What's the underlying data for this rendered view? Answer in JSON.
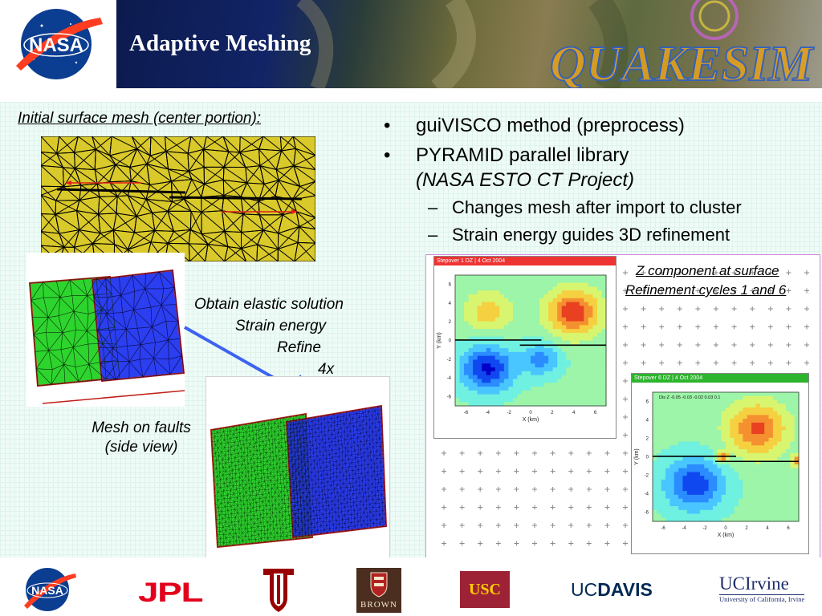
{
  "slide": {
    "title": "Adaptive Meshing",
    "banner_logo_text": "QUAKESIM"
  },
  "labels": {
    "initial_mesh": "Initial surface mesh (center portion):",
    "process_steps": [
      "Obtain elastic solution",
      "Strain energy",
      "Refine",
      "4x"
    ],
    "mesh_on_faults": [
      "Mesh on faults ",
      "(side view)"
    ],
    "z_component": "Z component at surface",
    "refinement_cycles": "Refinement cycles 1 and 6"
  },
  "bullets": [
    {
      "mark": "•",
      "text": "guiVISCO method (preprocess)"
    },
    {
      "mark": "•",
      "text": "PYRAMID parallel library",
      "sub": "(NASA ESTO CT Project)"
    }
  ],
  "sub_bullets": [
    {
      "mark": "–",
      "text": "Changes mesh after import to cluster"
    },
    {
      "mark": "–",
      "text": "Strain energy guides 3D refinement"
    }
  ],
  "plots": {
    "cycle1": {
      "header": "Stepover 1 DZ | 4 Oct 2004",
      "xlabel": "X (km)",
      "ylabel": "Y (km)",
      "xticks": [
        "-6",
        "-4",
        "-2",
        "0",
        "2",
        "4",
        "6"
      ],
      "yticks": [
        "6",
        "4",
        "2",
        "0",
        "-2",
        "-4",
        "-6"
      ]
    },
    "cycle6": {
      "header": "Stepover 6 DZ | 4 Oct 2004",
      "legend": "Dis Z  -0.05  -0.03  -0.02  0.03  0.1",
      "xlabel": "X (km)",
      "ylabel": "Y (km)",
      "xticks": [
        "-6",
        "-4",
        "-2",
        "0",
        "2",
        "4",
        "6"
      ],
      "yticks": [
        "6",
        "4",
        "2",
        "0",
        "-2",
        "-4",
        "-6"
      ]
    }
  },
  "footer_logos": {
    "nasa": "NASA",
    "jpl": "JPL",
    "iu": "IU",
    "brown": "BROWN",
    "usc": "USC",
    "ucdavis_uc": "UC",
    "ucdavis_davis": "DAVIS",
    "uci_name": "UCIrvine",
    "uci_sub": "University of California, Irvine"
  },
  "colors": {
    "banner_title": "#ffffff",
    "mesh_yellow": "#d9c92a",
    "fault_green": "#2ed42e",
    "fault_blue": "#2b3ef0",
    "arrow_red": "#e3201b",
    "arrow_blue": "#3d63f0",
    "plot_border": "#d58adb"
  }
}
